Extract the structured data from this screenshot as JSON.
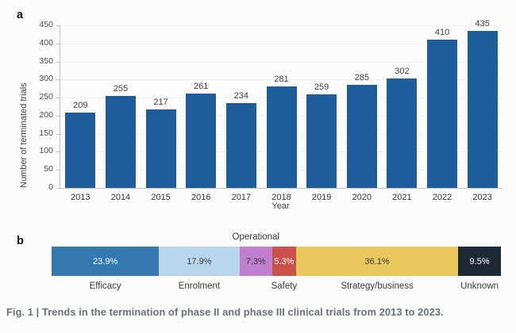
{
  "panels": {
    "a_label": "a",
    "b_label": "b"
  },
  "chart_data": [
    {
      "type": "bar",
      "panel": "a",
      "categories": [
        "2013",
        "2014",
        "2015",
        "2016",
        "2017",
        "2018",
        "2019",
        "2020",
        "2021",
        "2022",
        "2023"
      ],
      "values": [
        209,
        255,
        217,
        261,
        234,
        281,
        259,
        285,
        302,
        410,
        435
      ],
      "xlabel": "Year",
      "ylabel": "Number of terminated trials",
      "ylim": [
        0,
        450
      ],
      "ytick_step": 50,
      "bar_color": "#1e5c9b",
      "value_label_color": "#3d3d3d",
      "grid": "faint horizontal gridlines",
      "legend": "none"
    },
    {
      "type": "stacked-bar-horizontal",
      "panel": "b",
      "segments": [
        {
          "label": "Efficacy",
          "value": 23.9,
          "value_label": "23.9%",
          "color": "#3579b1",
          "text_color": "#ffffff",
          "label_position": "below"
        },
        {
          "label": "Enrolment",
          "value": 17.9,
          "value_label": "17.9%",
          "color": "#b8d7ec",
          "text_color": "#3a3a3a",
          "label_position": "below"
        },
        {
          "label": "Operational",
          "value": 7.3,
          "value_label": "7.3%",
          "color": "#c17fd2",
          "text_color": "#3a3a3a",
          "label_position": "above"
        },
        {
          "label": "Safety",
          "value": 5.3,
          "value_label": "5.3%",
          "color": "#c9504b",
          "text_color": "#ffffff",
          "label_position": "below"
        },
        {
          "label": "Strategy/business",
          "value": 36.1,
          "value_label": "36.1%",
          "color": "#eac85e",
          "text_color": "#3a3a3a",
          "label_position": "below"
        },
        {
          "label": "Unknown",
          "value": 9.5,
          "value_label": "9.5%",
          "color": "#1e2936",
          "text_color": "#ffffff",
          "label_position": "below"
        }
      ]
    }
  ],
  "caption": "Fig. 1 | Trends in the termination of phase II and phase III clinical trials from 2013 to 2023."
}
